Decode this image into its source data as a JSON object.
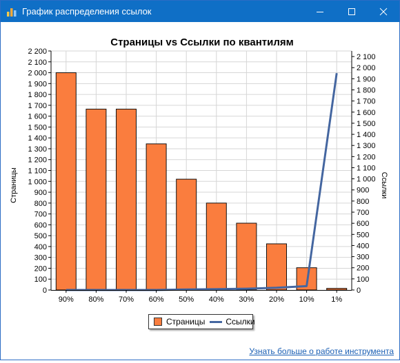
{
  "window": {
    "title": "График распределения ссылок",
    "controls": {
      "minimize": "minimize",
      "maximize": "maximize",
      "close": "close"
    }
  },
  "footer": {
    "link": "Узнать больше о работе инструмента"
  },
  "colors": {
    "titlebar": "#0f6fc6",
    "bar": "#fa7d3e",
    "line": "#4466a0"
  },
  "chart_data": {
    "type": "bar",
    "title": "Страницы vs Ссылки по квантилям",
    "categories": [
      "90%",
      "80%",
      "70%",
      "60%",
      "50%",
      "40%",
      "30%",
      "20%",
      "10%",
      "1%"
    ],
    "series": [
      {
        "name": "Страницы",
        "type": "bar",
        "axis": "left",
        "values": [
          2000,
          1665,
          1665,
          1345,
          1020,
          800,
          615,
          425,
          205,
          15
        ]
      },
      {
        "name": "Ссылки",
        "type": "line",
        "axis": "right",
        "values": [
          0,
          0,
          0,
          0,
          5,
          8,
          12,
          20,
          35,
          1950
        ]
      }
    ],
    "ylabel": "Страницы",
    "y2label": "Ссылки",
    "ylim": [
      0,
      2200
    ],
    "y2lim": [
      0,
      2150
    ],
    "yticks": [
      0,
      100,
      200,
      300,
      400,
      500,
      600,
      700,
      800,
      900,
      1000,
      1100,
      1200,
      1300,
      1400,
      1500,
      1600,
      1700,
      1800,
      1900,
      2000,
      2100,
      2200
    ],
    "y2ticks": [
      0,
      100,
      200,
      300,
      400,
      500,
      600,
      700,
      800,
      900,
      1000,
      1100,
      1200,
      1300,
      1400,
      1500,
      1600,
      1700,
      1800,
      1900,
      2000,
      2100
    ],
    "grid": true,
    "legend": "bottom-center"
  }
}
